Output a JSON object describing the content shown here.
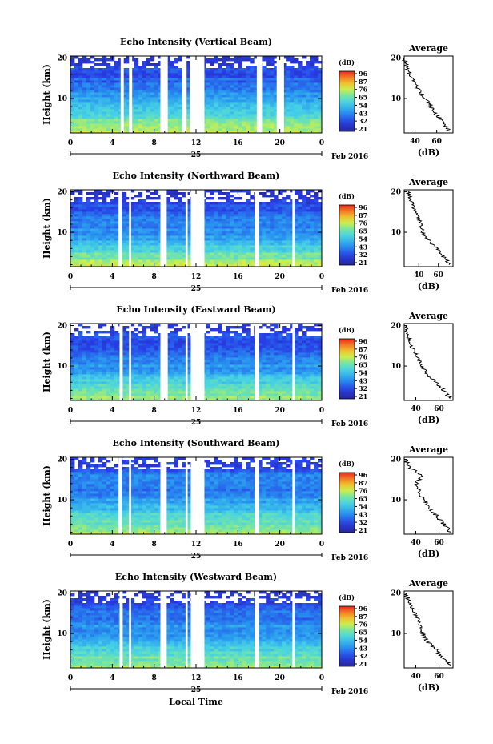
{
  "figure": {
    "x_axis_title": "Local Time",
    "date_label": "Feb 2016",
    "day_label": "25"
  },
  "chart_data": [
    {
      "type": "heatmap",
      "title": "Echo Intensity (Vertical Beam)",
      "ylabel": "Height (km)",
      "x_ticks": [
        "0",
        "4",
        "8",
        "12",
        "16",
        "20",
        "0"
      ],
      "y_ticks": [
        "10",
        "20"
      ],
      "xlim": [
        0,
        24
      ],
      "ylim": [
        1.5,
        20.5
      ],
      "colorbar": {
        "label": "(dB)",
        "ticks": [
          "96",
          "87",
          "76",
          "65",
          "54",
          "43",
          "32",
          "21"
        ],
        "range": [
          21,
          96
        ]
      },
      "gaps_hours": [
        [
          4.8,
          5.1
        ],
        [
          5.6,
          5.9
        ],
        [
          8.6,
          9.3
        ],
        [
          10.7,
          11.1
        ],
        [
          11.4,
          12.8
        ],
        [
          17.8,
          18.3
        ],
        [
          19.7,
          20.4
        ]
      ],
      "profile": {
        "title": "Average",
        "xlabel": "(dB)",
        "x_ticks": [
          "40",
          "60"
        ],
        "xlim": [
          30,
          75
        ],
        "y_ticks": [
          "10",
          "20"
        ],
        "ylim": [
          1.5,
          20.5
        ],
        "height": [
          2,
          4,
          6,
          8,
          10,
          12,
          14,
          16,
          18,
          20
        ],
        "value": [
          72,
          66,
          60,
          55,
          49,
          44,
          39,
          35,
          32,
          30
        ]
      }
    },
    {
      "type": "heatmap",
      "title": "Echo Intensity (Northward Beam)",
      "ylabel": "Height (km)",
      "x_ticks": [
        "0",
        "4",
        "8",
        "12",
        "16",
        "20",
        "0"
      ],
      "y_ticks": [
        "10",
        "20"
      ],
      "xlim": [
        0,
        24
      ],
      "ylim": [
        1.5,
        20.5
      ],
      "colorbar": {
        "label": "(dB)",
        "ticks": [
          "96",
          "87",
          "76",
          "65",
          "54",
          "43",
          "32",
          "21"
        ],
        "range": [
          21,
          96
        ]
      },
      "gaps_hours": [
        [
          4.6,
          4.9
        ],
        [
          5.6,
          5.8
        ],
        [
          8.6,
          9.2
        ],
        [
          11.0,
          11.2
        ],
        [
          11.5,
          12.8
        ],
        [
          17.6,
          18.0
        ],
        [
          21.2,
          21.4
        ]
      ],
      "profile": {
        "title": "Average",
        "xlabel": "(dB)",
        "x_ticks": [
          "40",
          "60"
        ],
        "xlim": [
          25,
          75
        ],
        "y_ticks": [
          "10",
          "20"
        ],
        "ylim": [
          1.5,
          20.5
        ],
        "height": [
          2,
          4,
          6,
          8,
          10,
          12,
          14,
          16,
          18,
          20
        ],
        "value": [
          72,
          65,
          58,
          50,
          44,
          42,
          39,
          35,
          32,
          29
        ]
      }
    },
    {
      "type": "heatmap",
      "title": "Echo Intensity (Eastward Beam)",
      "ylabel": "Height (km)",
      "x_ticks": [
        "0",
        "4",
        "8",
        "12",
        "16",
        "20",
        "0"
      ],
      "y_ticks": [
        "10",
        "20"
      ],
      "xlim": [
        0,
        24
      ],
      "ylim": [
        1.5,
        20.5
      ],
      "colorbar": {
        "label": "(dB)",
        "ticks": [
          "96",
          "87",
          "76",
          "65",
          "54",
          "43",
          "32",
          "21"
        ],
        "range": [
          21,
          96
        ]
      },
      "gaps_hours": [
        [
          4.7,
          5.0
        ],
        [
          5.6,
          5.8
        ],
        [
          8.6,
          9.3
        ],
        [
          11.0,
          11.2
        ],
        [
          11.5,
          12.8
        ],
        [
          17.6,
          18.0
        ],
        [
          21.2,
          21.4
        ]
      ],
      "profile": {
        "title": "Average",
        "xlabel": "(dB)",
        "x_ticks": [
          "40",
          "60"
        ],
        "xlim": [
          30,
          72
        ],
        "y_ticks": [
          "10",
          "20"
        ],
        "ylim": [
          1.5,
          20.5
        ],
        "height": [
          2,
          4,
          6,
          8,
          10,
          12,
          14,
          16,
          18,
          20
        ],
        "value": [
          70,
          64,
          57,
          50,
          45,
          42,
          38,
          35,
          33,
          31
        ]
      }
    },
    {
      "type": "heatmap",
      "title": "Echo Intensity (Southward Beam)",
      "ylabel": "Height (km)",
      "x_ticks": [
        "0",
        "4",
        "8",
        "12",
        "16",
        "20",
        "0"
      ],
      "y_ticks": [
        "10",
        "20"
      ],
      "xlim": [
        0,
        24
      ],
      "ylim": [
        1.5,
        20.5
      ],
      "colorbar": {
        "label": "(dB)",
        "ticks": [
          "96",
          "87",
          "76",
          "65",
          "54",
          "43",
          "32",
          "21"
        ],
        "range": [
          21,
          96
        ]
      },
      "gaps_hours": [
        [
          4.6,
          4.9
        ],
        [
          5.6,
          5.8
        ],
        [
          8.6,
          9.2
        ],
        [
          11.0,
          11.2
        ],
        [
          11.5,
          12.8
        ],
        [
          17.6,
          18.0
        ],
        [
          21.2,
          21.4
        ]
      ],
      "profile": {
        "title": "Average",
        "xlabel": "(dB)",
        "x_ticks": [
          "40",
          "60"
        ],
        "xlim": [
          30,
          72
        ],
        "y_ticks": [
          "10",
          "20"
        ],
        "ylim": [
          1.5,
          20.5
        ],
        "height": [
          2,
          4,
          6,
          8,
          10,
          12,
          14,
          16,
          18,
          20
        ],
        "value": [
          70,
          64,
          58,
          52,
          47,
          43,
          40,
          46,
          34,
          31
        ]
      }
    },
    {
      "type": "heatmap",
      "title": "Echo Intensity (Westward Beam)",
      "ylabel": "Height (km)",
      "x_ticks": [
        "0",
        "4",
        "8",
        "12",
        "16",
        "20",
        "0"
      ],
      "y_ticks": [
        "10",
        "20"
      ],
      "xlim": [
        0,
        24
      ],
      "ylim": [
        1.5,
        20.5
      ],
      "colorbar": {
        "label": "(dB)",
        "ticks": [
          "96",
          "87",
          "76",
          "65",
          "54",
          "43",
          "32",
          "21"
        ],
        "range": [
          21,
          96
        ]
      },
      "gaps_hours": [
        [
          4.7,
          5.0
        ],
        [
          5.6,
          5.8
        ],
        [
          8.6,
          9.2
        ],
        [
          11.0,
          11.2
        ],
        [
          11.5,
          12.8
        ],
        [
          17.6,
          18.0
        ],
        [
          21.2,
          21.4
        ]
      ],
      "profile": {
        "title": "Average",
        "xlabel": "(dB)",
        "x_ticks": [
          "40",
          "60"
        ],
        "xlim": [
          30,
          72
        ],
        "y_ticks": [
          "10",
          "20"
        ],
        "ylim": [
          1.5,
          20.5
        ],
        "height": [
          2,
          4,
          6,
          8,
          10,
          12,
          14,
          16,
          18,
          20
        ],
        "value": [
          70,
          64,
          57,
          50,
          46,
          44,
          41,
          38,
          34,
          31
        ]
      }
    }
  ]
}
